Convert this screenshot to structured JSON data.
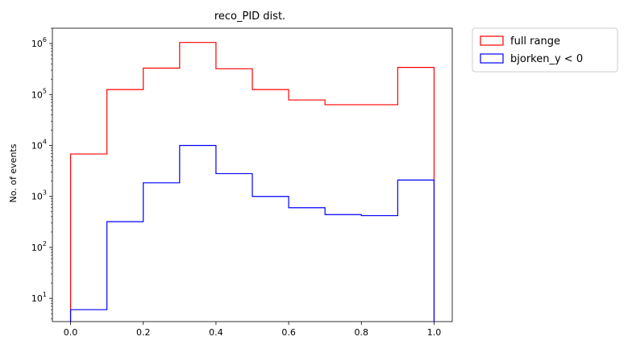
{
  "chart_data": {
    "type": "histogram",
    "title": "reco_PID dist.",
    "xlabel": "",
    "ylabel": "No. of events",
    "yscale": "log",
    "xlim": [
      -0.05,
      1.05
    ],
    "ylim": [
      3.5,
      2000000
    ],
    "bin_edges": [
      0.0,
      0.1,
      0.2,
      0.3,
      0.4,
      0.5,
      0.6,
      0.7,
      0.8,
      0.9,
      1.0
    ],
    "x_ticks": [
      "0.0",
      "0.2",
      "0.4",
      "0.6",
      "0.8",
      "1.0"
    ],
    "x_tick_values": [
      0.0,
      0.2,
      0.4,
      0.6,
      0.8,
      1.0
    ],
    "y_ticks": [
      {
        "value": 10,
        "base": "10",
        "exp": "1"
      },
      {
        "value": 100,
        "base": "10",
        "exp": "2"
      },
      {
        "value": 1000,
        "base": "10",
        "exp": "3"
      },
      {
        "value": 10000,
        "base": "10",
        "exp": "4"
      },
      {
        "value": 100000,
        "base": "10",
        "exp": "5"
      },
      {
        "value": 1000000,
        "base": "10",
        "exp": "6"
      }
    ],
    "legend_position": "outside-top-right",
    "series": [
      {
        "name": "full range",
        "color": "#ff0000",
        "values": [
          6800,
          125000,
          330000,
          1050000,
          320000,
          125000,
          78000,
          63000,
          63000,
          340000
        ]
      },
      {
        "name": "bjorken_y < 0",
        "color": "#0000ff",
        "values": [
          6,
          320,
          1850,
          10000,
          2800,
          1000,
          600,
          440,
          420,
          2100
        ]
      }
    ]
  }
}
